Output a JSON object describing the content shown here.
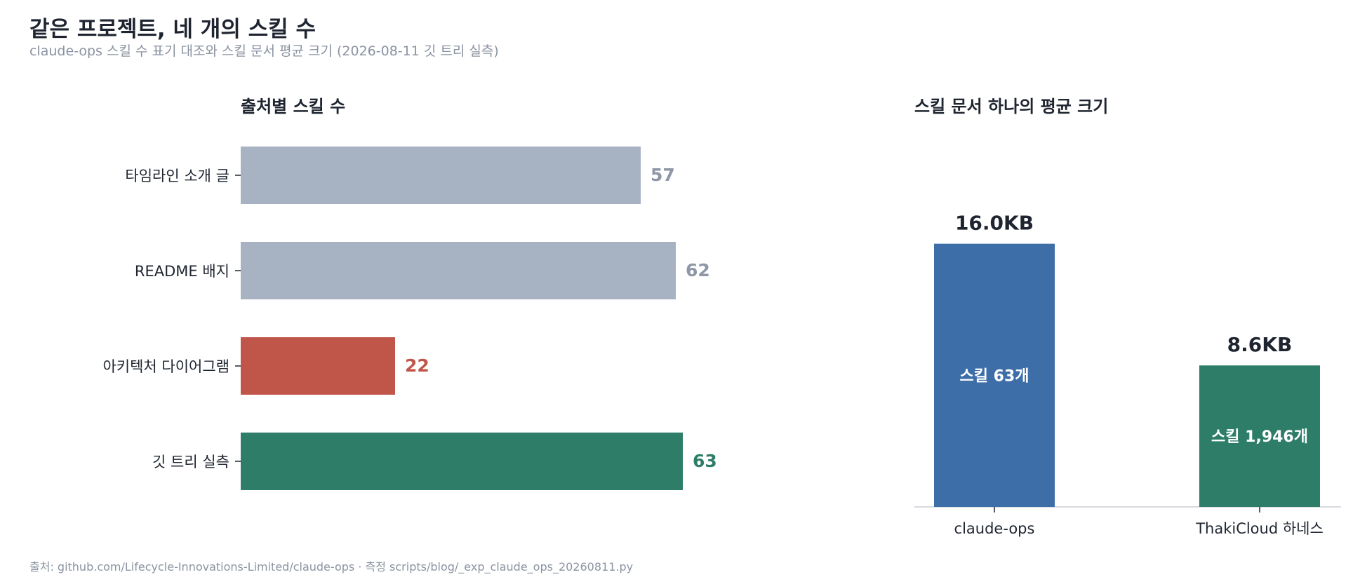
{
  "header": {
    "title": "같은 프로젝트, 네 개의 스킬 수",
    "subtitle": "claude-ops 스킬 수 표기 대조와 스킬 문서 평균 크기 (2026-08-11 깃 트리 실측)"
  },
  "footer": {
    "source": "출처: github.com/Lifecycle-Innovations-Limited/claude-ops · 측정 scripts/blog/_exp_claude_ops_20260811.py"
  },
  "chart_data": [
    {
      "type": "bar",
      "orientation": "horizontal",
      "title": "출처별 스킬 수",
      "categories": [
        "타임라인 소개 글",
        "README 배지",
        "아키텍처 다이어그램",
        "깃 트리 실측"
      ],
      "values": [
        57,
        62,
        22,
        63
      ],
      "value_labels": [
        "57",
        "62",
        "22",
        "63"
      ],
      "colors": [
        "#a7b2c3",
        "#a7b2c3",
        "#c0554a",
        "#2e7d68"
      ],
      "label_colors": [
        "#8e97a6",
        "#8e97a6",
        "#c0554a",
        "#2e7d68"
      ],
      "xlim": [
        0,
        70
      ],
      "grid": false
    },
    {
      "type": "bar",
      "orientation": "vertical",
      "title": "스킬 문서 하나의 평균 크기",
      "categories": [
        "claude-ops",
        "ThakiCloud 하네스"
      ],
      "values": [
        16.0,
        8.6
      ],
      "value_labels": [
        "16.0KB",
        "8.6KB"
      ],
      "inner_labels": [
        "스킬 63개",
        "스킬 1,946개"
      ],
      "colors": [
        "#3d6ea8",
        "#2e7d68"
      ],
      "ylim": [
        0,
        18.5
      ],
      "grid": false
    }
  ]
}
